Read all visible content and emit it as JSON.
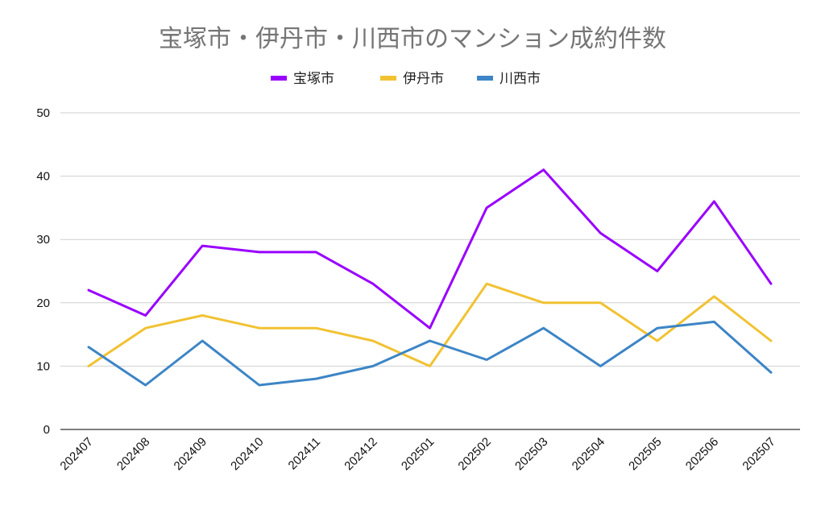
{
  "chart_data": {
    "type": "line",
    "title": "宝塚市・伊丹市・川西市のマンション成約件数",
    "xlabel": "",
    "ylabel": "",
    "ylim": [
      0,
      50
    ],
    "yticks": [
      "0",
      "10",
      "20",
      "30",
      "40",
      "50"
    ],
    "grid": true,
    "legend_position": "top",
    "categories": [
      "202407",
      "202408",
      "202409",
      "202410",
      "202411",
      "202412",
      "202501",
      "202502",
      "202503",
      "202504",
      "202505",
      "202506",
      "202507"
    ],
    "series": [
      {
        "name": "宝塚市",
        "color": "#9900ff",
        "values": [
          22,
          18,
          29,
          28,
          28,
          23,
          16,
          35,
          41,
          31,
          25,
          36,
          23
        ]
      },
      {
        "name": "伊丹市",
        "color": "#f1c232",
        "values": [
          10,
          16,
          18,
          16,
          16,
          14,
          10,
          23,
          20,
          20,
          14,
          21,
          14
        ]
      },
      {
        "name": "川西市",
        "color": "#3d85c6",
        "values": [
          13,
          7,
          14,
          7,
          8,
          10,
          14,
          11,
          16,
          10,
          16,
          17,
          9
        ]
      }
    ]
  }
}
